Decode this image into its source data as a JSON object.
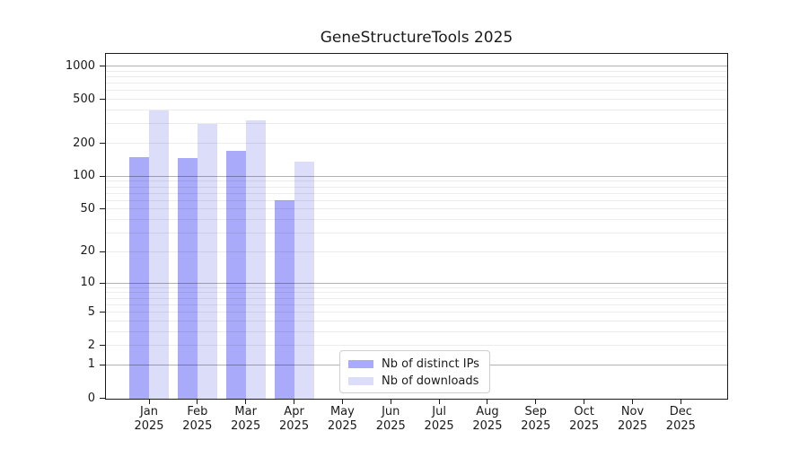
{
  "title": "GeneStructureTools 2025",
  "legend": {
    "items": [
      {
        "label": "Nb of distinct IPs",
        "color": "#a9aafa"
      },
      {
        "label": "Nb of downloads",
        "color": "#dcddf9"
      }
    ]
  },
  "chart_data": {
    "type": "bar",
    "title": "GeneStructureTools 2025",
    "x_months": [
      "Jan",
      "Feb",
      "Mar",
      "Apr",
      "May",
      "Jun",
      "Jul",
      "Aug",
      "Sep",
      "Oct",
      "Nov",
      "Dec"
    ],
    "x_year": "2025",
    "series": [
      {
        "name": "Nb of distinct IPs",
        "color": "#a9aafa",
        "values": [
          150,
          148,
          170,
          60,
          null,
          null,
          null,
          null,
          null,
          null,
          null,
          null
        ]
      },
      {
        "name": "Nb of downloads",
        "color": "#dcddf9",
        "values": [
          400,
          300,
          320,
          135,
          null,
          null,
          null,
          null,
          null,
          null,
          null,
          null
        ]
      }
    ],
    "yscale": "log1p",
    "ylim": [
      0,
      1280
    ],
    "y_tick_values": [
      0,
      1,
      2,
      5,
      10,
      20,
      50,
      100,
      200,
      500,
      1000
    ],
    "grid_major_values": [
      1,
      10,
      100,
      1000
    ],
    "grid_minor_values": [
      2,
      3,
      4,
      5,
      6,
      7,
      8,
      9,
      20,
      30,
      40,
      50,
      60,
      70,
      80,
      90,
      200,
      300,
      400,
      500,
      600,
      700,
      800,
      900
    ],
    "grid": "horizontal",
    "legend_position": "lower center-left inside axes",
    "colors": {
      "major_grid": "rgba(0,0,0,0.30)",
      "minor_grid": "rgba(0,0,0,0.075)"
    }
  }
}
